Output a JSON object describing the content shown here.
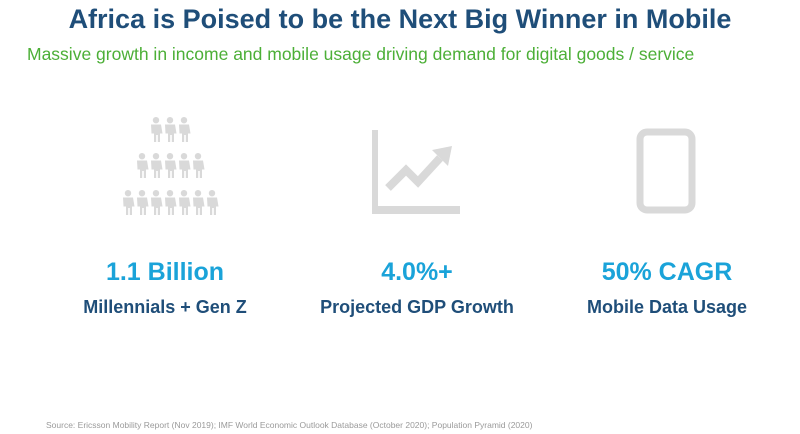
{
  "title": "Africa is Poised to be the Next Big Winner in Mobile",
  "subtitle": "Massive growth in income and mobile usage driving demand for digital goods / service",
  "stats": [
    {
      "value": "1.1 Billion",
      "label": "Millennials + Gen Z",
      "icon": "people-pyramid-icon"
    },
    {
      "value": "4.0%+",
      "label": "Projected GDP Growth",
      "icon": "growth-chart-icon"
    },
    {
      "value": "50% CAGR",
      "label": "Mobile Data Usage",
      "icon": "mobile-phone-icon"
    }
  ],
  "source": "Source: Ericsson Mobility Report (Nov 2019); IMF World Economic Outlook Database (October 2020); Population Pyramid (2020)",
  "colors": {
    "title": "#1f4e79",
    "subtitle": "#4caf37",
    "stat_value": "#1aa3d9",
    "icon": "#d9d9d9"
  }
}
